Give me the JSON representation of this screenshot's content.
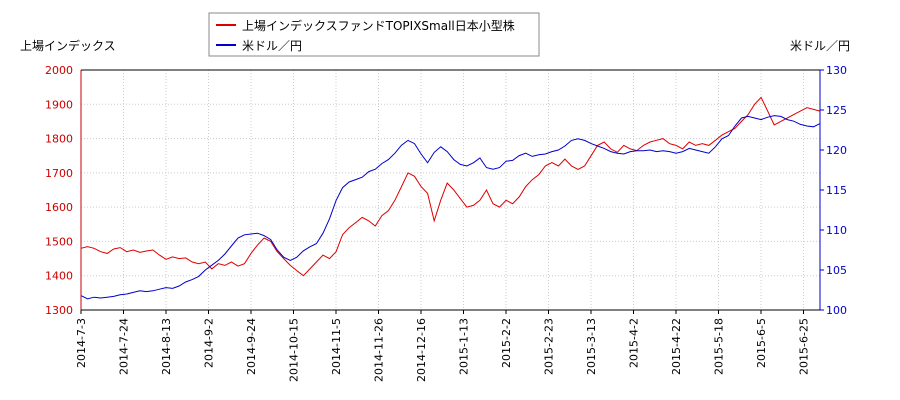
{
  "chart_data": {
    "type": "line",
    "left_axis_title": "上場インデックス",
    "right_axis_title": "米ドル／円",
    "left_ylim": [
      1300,
      2000
    ],
    "left_yticks": [
      1300,
      1400,
      1500,
      1600,
      1700,
      1800,
      1900,
      2000
    ],
    "right_ylim": [
      100,
      130
    ],
    "right_yticks": [
      100,
      105,
      110,
      115,
      120,
      125,
      130
    ],
    "x_tick_labels": [
      "2014-7-3",
      "2014-7-24",
      "2014-8-13",
      "2014-9-2",
      "2014-9-24",
      "2014-10-15",
      "2014-11-5",
      "2014-11-26",
      "2014-12-16",
      "2015-1-13",
      "2015-2-2",
      "2015-2-23",
      "2015-3-13",
      "2015-4-2",
      "2015-4-22",
      "2015-5-18",
      "2015-6-5",
      "2015-6-25"
    ],
    "grid": true,
    "legend_placement": "top-center",
    "colors": {
      "index": "#dd0000",
      "usdjpy": "#0000cc",
      "left_axis": "#cc0000",
      "right_axis": "#0000cc",
      "grid": "#cccccc"
    },
    "series": [
      {
        "name": "上場インデックスファンドTOPIXSmall日本小型株",
        "axis": "left",
        "values": [
          1480,
          1485,
          1480,
          1470,
          1465,
          1478,
          1482,
          1470,
          1475,
          1468,
          1472,
          1475,
          1460,
          1448,
          1455,
          1450,
          1452,
          1440,
          1435,
          1440,
          1420,
          1435,
          1430,
          1440,
          1428,
          1435,
          1465,
          1490,
          1510,
          1500,
          1470,
          1450,
          1430,
          1415,
          1400,
          1420,
          1440,
          1460,
          1450,
          1470,
          1520,
          1540,
          1555,
          1570,
          1560,
          1545,
          1575,
          1590,
          1620,
          1660,
          1700,
          1690,
          1660,
          1640,
          1560,
          1620,
          1670,
          1650,
          1625,
          1600,
          1605,
          1620,
          1650,
          1610,
          1600,
          1620,
          1610,
          1630,
          1660,
          1680,
          1695,
          1720,
          1730,
          1720,
          1740,
          1720,
          1710,
          1720,
          1750,
          1780,
          1790,
          1770,
          1760,
          1780,
          1770,
          1765,
          1780,
          1790,
          1795,
          1800,
          1785,
          1780,
          1770,
          1790,
          1780,
          1785,
          1780,
          1795,
          1810,
          1820,
          1830,
          1850,
          1870,
          1900,
          1920,
          1880,
          1840,
          1850,
          1860,
          1870,
          1880,
          1890,
          1885,
          1880
        ]
      },
      {
        "name": "米ドル／円",
        "axis": "right",
        "values": [
          101.8,
          101.4,
          101.6,
          101.5,
          101.6,
          101.7,
          101.9,
          102.0,
          102.2,
          102.4,
          102.3,
          102.4,
          102.6,
          102.8,
          102.7,
          103.0,
          103.5,
          103.8,
          104.2,
          105.0,
          105.6,
          106.2,
          107.0,
          108.0,
          109.0,
          109.4,
          109.5,
          109.6,
          109.3,
          108.8,
          107.5,
          106.6,
          106.2,
          106.6,
          107.4,
          107.9,
          108.3,
          109.6,
          111.4,
          113.7,
          115.3,
          116.0,
          116.3,
          116.6,
          117.3,
          117.6,
          118.3,
          118.8,
          119.6,
          120.6,
          121.2,
          120.8,
          119.5,
          118.4,
          119.7,
          120.4,
          119.8,
          118.8,
          118.2,
          118.0,
          118.4,
          119.0,
          117.8,
          117.6,
          117.8,
          118.6,
          118.7,
          119.3,
          119.6,
          119.2,
          119.4,
          119.5,
          119.8,
          120.0,
          120.5,
          121.2,
          121.4,
          121.2,
          120.8,
          120.5,
          120.2,
          119.8,
          119.6,
          119.5,
          119.8,
          119.9,
          119.9,
          120.0,
          119.8,
          119.9,
          119.8,
          119.6,
          119.8,
          120.2,
          120.0,
          119.8,
          119.6,
          120.4,
          121.4,
          121.8,
          123.0,
          124.0,
          124.2,
          124.0,
          123.8,
          124.1,
          124.3,
          124.2,
          123.8,
          123.6,
          123.2,
          123.0,
          122.9,
          123.3
        ]
      }
    ]
  }
}
